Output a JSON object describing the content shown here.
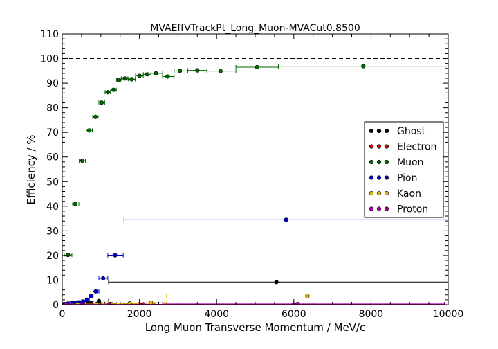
{
  "chart_data": {
    "type": "scatter",
    "title": "MVAEffVTrackPt_Long_Muon-MVACut0.8500",
    "xlabel": "Long Muon Transverse Momentum / MeV/c",
    "ylabel": "Efficiency / %",
    "xlim": [
      0,
      10000
    ],
    "ylim": [
      0,
      110
    ],
    "x_ticks": [
      "0",
      "2000",
      "4000",
      "6000",
      "8000",
      "10000"
    ],
    "y_ticks": [
      "0",
      "10",
      "20",
      "30",
      "40",
      "50",
      "60",
      "70",
      "80",
      "90",
      "100",
      "110"
    ],
    "reference_line_y": 100,
    "legend_position": "center-right",
    "series": [
      {
        "name": "Ghost",
        "color": "#000000",
        "points": [
          {
            "x": 50,
            "y": 0.1,
            "xlo": 0,
            "xhi": 100
          },
          {
            "x": 150,
            "y": 0.2,
            "xlo": 100,
            "xhi": 200
          },
          {
            "x": 250,
            "y": 0.3,
            "xlo": 200,
            "xhi": 300
          },
          {
            "x": 350,
            "y": 0.3,
            "xlo": 300,
            "xhi": 400
          },
          {
            "x": 450,
            "y": 0.4,
            "xlo": 400,
            "xhi": 500
          },
          {
            "x": 550,
            "y": 0.4,
            "xlo": 500,
            "xhi": 600
          },
          {
            "x": 650,
            "y": 0.6,
            "xlo": 600,
            "xhi": 700
          },
          {
            "x": 750,
            "y": 0.7,
            "xlo": 700,
            "xhi": 800
          },
          {
            "x": 950,
            "y": 1.5,
            "xlo": 700,
            "xhi": 1200
          },
          {
            "x": 1250,
            "y": 0.3,
            "xlo": 1100,
            "xhi": 1400
          },
          {
            "x": 1750,
            "y": 0.5,
            "xlo": 1500,
            "xhi": 2000
          },
          {
            "x": 5550,
            "y": 9.2,
            "xlo": 1200,
            "xhi": 10000
          }
        ]
      },
      {
        "name": "Electron",
        "color": "#cc0000",
        "points": [
          {
            "x": 100,
            "y": 0.1,
            "xlo": 0,
            "xhi": 200
          },
          {
            "x": 300,
            "y": 0.2,
            "xlo": 200,
            "xhi": 400
          },
          {
            "x": 500,
            "y": 0.2,
            "xlo": 400,
            "xhi": 600
          },
          {
            "x": 900,
            "y": 0.3,
            "xlo": 600,
            "xhi": 1200
          },
          {
            "x": 1300,
            "y": 0.1,
            "xlo": 1200,
            "xhi": 1400
          },
          {
            "x": 2000,
            "y": 0.2,
            "xlo": 1600,
            "xhi": 2400
          },
          {
            "x": 6000,
            "y": 0.1,
            "xlo": 2400,
            "xhi": 9900
          }
        ]
      },
      {
        "name": "Muon",
        "color": "#006400",
        "points": [
          {
            "x": 150,
            "y": 20.2,
            "xlo": 50,
            "xhi": 250
          },
          {
            "x": 340,
            "y": 40.9,
            "xlo": 270,
            "xhi": 430
          },
          {
            "x": 520,
            "y": 58.5,
            "xlo": 440,
            "xhi": 600
          },
          {
            "x": 700,
            "y": 70.8,
            "xlo": 620,
            "xhi": 780
          },
          {
            "x": 860,
            "y": 76.3,
            "xlo": 790,
            "xhi": 930
          },
          {
            "x": 1020,
            "y": 82.1,
            "xlo": 950,
            "xhi": 1100
          },
          {
            "x": 1180,
            "y": 86.3,
            "xlo": 1110,
            "xhi": 1250
          },
          {
            "x": 1330,
            "y": 87.3,
            "xlo": 1260,
            "xhi": 1400
          },
          {
            "x": 1460,
            "y": 91.3,
            "xlo": 1410,
            "xhi": 1520
          },
          {
            "x": 1620,
            "y": 91.9,
            "xlo": 1530,
            "xhi": 1700
          },
          {
            "x": 1800,
            "y": 91.6,
            "xlo": 1710,
            "xhi": 1890
          },
          {
            "x": 2000,
            "y": 93.0,
            "xlo": 1900,
            "xhi": 2100
          },
          {
            "x": 2200,
            "y": 93.6,
            "xlo": 2100,
            "xhi": 2300
          },
          {
            "x": 2430,
            "y": 94.0,
            "xlo": 2300,
            "xhi": 2600
          },
          {
            "x": 2730,
            "y": 92.7,
            "xlo": 2600,
            "xhi": 2900
          },
          {
            "x": 3050,
            "y": 95.0,
            "xlo": 2900,
            "xhi": 3250
          },
          {
            "x": 3500,
            "y": 95.2,
            "xlo": 3250,
            "xhi": 3750
          },
          {
            "x": 4100,
            "y": 94.9,
            "xlo": 3750,
            "xhi": 4500
          },
          {
            "x": 5050,
            "y": 96.5,
            "xlo": 4500,
            "xhi": 5600
          },
          {
            "x": 7800,
            "y": 96.9,
            "xlo": 5600,
            "xhi": 10000
          }
        ]
      },
      {
        "name": "Pion",
        "color": "#0000cc",
        "points": [
          {
            "x": 50,
            "y": 0.3,
            "xlo": 0,
            "xhi": 100
          },
          {
            "x": 150,
            "y": 0.5,
            "xlo": 100,
            "xhi": 200
          },
          {
            "x": 250,
            "y": 0.6,
            "xlo": 200,
            "xhi": 300
          },
          {
            "x": 350,
            "y": 0.8,
            "xlo": 300,
            "xhi": 400
          },
          {
            "x": 450,
            "y": 1.0,
            "xlo": 400,
            "xhi": 500
          },
          {
            "x": 550,
            "y": 1.3,
            "xlo": 500,
            "xhi": 600
          },
          {
            "x": 650,
            "y": 2.0,
            "xlo": 600,
            "xhi": 700
          },
          {
            "x": 750,
            "y": 3.5,
            "xlo": 700,
            "xhi": 800
          },
          {
            "x": 870,
            "y": 5.4,
            "xlo": 800,
            "xhi": 950
          },
          {
            "x": 1060,
            "y": 10.7,
            "xlo": 950,
            "xhi": 1180
          },
          {
            "x": 1370,
            "y": 20.1,
            "xlo": 1180,
            "xhi": 1580
          },
          {
            "x": 5800,
            "y": 34.5,
            "xlo": 1600,
            "xhi": 10000
          }
        ]
      },
      {
        "name": "Kaon",
        "color": "#e0c000",
        "points": [
          {
            "x": 100,
            "y": 0.1,
            "xlo": 0,
            "xhi": 200
          },
          {
            "x": 400,
            "y": 0.2,
            "xlo": 200,
            "xhi": 600
          },
          {
            "x": 900,
            "y": 0.2,
            "xlo": 600,
            "xhi": 1200
          },
          {
            "x": 1750,
            "y": 0.5,
            "xlo": 1200,
            "xhi": 2000
          },
          {
            "x": 2300,
            "y": 0.8,
            "xlo": 2000,
            "xhi": 2700
          },
          {
            "x": 6350,
            "y": 3.5,
            "xlo": 2700,
            "xhi": 10000
          }
        ]
      },
      {
        "name": "Proton",
        "color": "#aa00aa",
        "points": [
          {
            "x": 100,
            "y": 0.1,
            "xlo": 0,
            "xhi": 200
          },
          {
            "x": 500,
            "y": 0.1,
            "xlo": 200,
            "xhi": 800
          },
          {
            "x": 1200,
            "y": 0.1,
            "xlo": 800,
            "xhi": 1600
          },
          {
            "x": 2100,
            "y": 0.1,
            "xlo": 1600,
            "xhi": 2600
          },
          {
            "x": 6100,
            "y": 0.3,
            "xlo": 2600,
            "xhi": 9900
          }
        ]
      }
    ]
  }
}
